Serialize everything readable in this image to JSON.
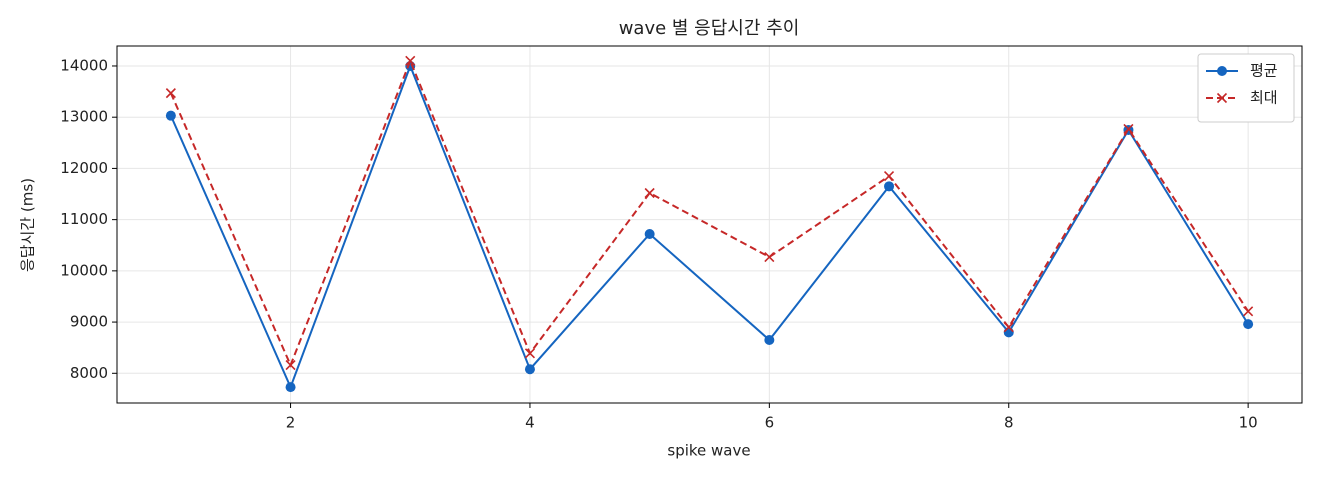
{
  "chart_data": {
    "type": "line",
    "title": "wave 별 응답시간 추이",
    "x_label": "spike wave",
    "y_label": "응답시간 (ms)",
    "x": [
      1,
      2,
      3,
      4,
      5,
      6,
      7,
      8,
      9,
      10
    ],
    "series": [
      {
        "name": "평균",
        "color": "#1565c0",
        "line_style": "solid",
        "marker": "circle",
        "values": [
          13030,
          7730,
          14000,
          8080,
          10720,
          8650,
          11650,
          8800,
          12750,
          8960
        ]
      },
      {
        "name": "최대",
        "color": "#c62828",
        "line_style": "dashed",
        "marker": "x",
        "values": [
          13470,
          8160,
          14100,
          8390,
          11520,
          10270,
          11850,
          8900,
          12770,
          9210
        ]
      }
    ],
    "xlim": [
      0.55,
      10.45
    ],
    "ylim": [
      7420,
      14390
    ],
    "xticks": [
      2,
      4,
      6,
      8,
      10
    ],
    "yticks": [
      8000,
      9000,
      10000,
      11000,
      12000,
      13000,
      14000
    ],
    "grid": true,
    "legend": "upper right"
  }
}
